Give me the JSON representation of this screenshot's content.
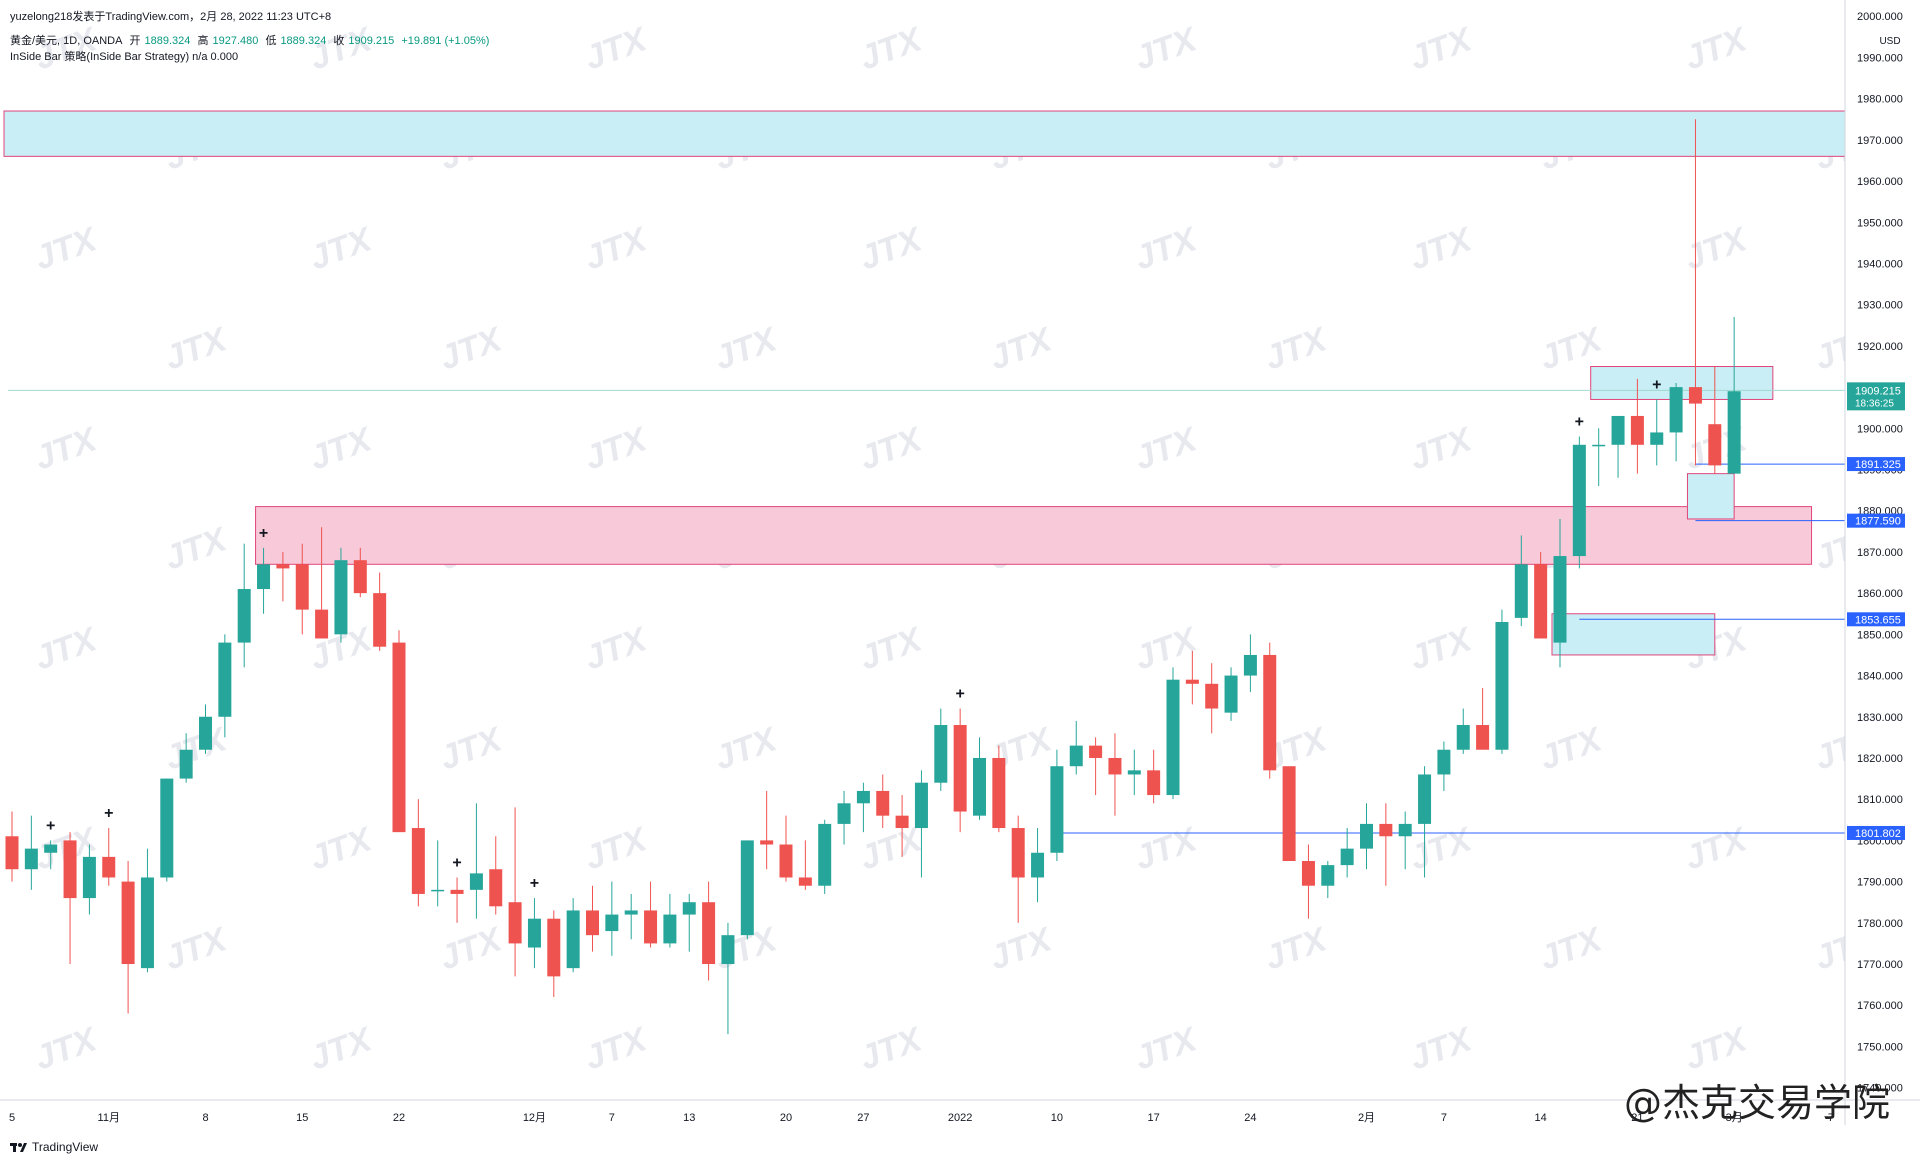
{
  "header": {
    "author_line": "yuzelong218发表于TradingView.com，2月 28, 2022 11:23 UTC+8",
    "symbol": "黄金/美元, 1D, OANDA",
    "open_label": "开",
    "open": "1889.324",
    "high_label": "高",
    "high": "1927.480",
    "low_label": "低",
    "low": "1889.324",
    "close_label": "收",
    "close": "1909.215",
    "change": "+19.891 (+1.05%)",
    "indicator": "InSide Bar 策略(InSide Bar Strategy)  n/a  0.000"
  },
  "footer": {
    "brand": "TradingView"
  },
  "watermark": {
    "text": "@杰克交易学院",
    "tile": "JTX"
  },
  "colors": {
    "up": "#26a69a",
    "down": "#ef5350",
    "zone_blue": "#c9eef5",
    "zone_pink": "#f8c9d8",
    "zone_border": "#e0457b",
    "level_line": "#2962ff",
    "price_tag": "#26a69a"
  },
  "chart_data": {
    "type": "candlestick",
    "title": "黄金/美元, 1D, OANDA",
    "currency": "USD",
    "yaxis_ticks": [
      "2000.000",
      "1990.000",
      "1980.000",
      "1970.000",
      "1960.000",
      "1950.000",
      "1940.000",
      "1930.000",
      "1920.000",
      "1910.000",
      "1900.000",
      "1890.000",
      "1880.000",
      "1870.000",
      "1860.000",
      "1850.000",
      "1840.000",
      "1830.000",
      "1820.000",
      "1810.000",
      "1800.000",
      "1790.000",
      "1780.000",
      "1770.000",
      "1760.000",
      "1750.000",
      "1740.000"
    ],
    "ylim": [
      1737,
      2002
    ],
    "xaxis_labels": [
      {
        "i": 0,
        "label": "5"
      },
      {
        "i": 5,
        "label": "11月"
      },
      {
        "i": 10,
        "label": "8"
      },
      {
        "i": 15,
        "label": "15"
      },
      {
        "i": 20,
        "label": "22"
      },
      {
        "i": 27,
        "label": "12月"
      },
      {
        "i": 31,
        "label": "7"
      },
      {
        "i": 35,
        "label": "13"
      },
      {
        "i": 40,
        "label": "20"
      },
      {
        "i": 44,
        "label": "27"
      },
      {
        "i": 49,
        "label": "2022"
      },
      {
        "i": 54,
        "label": "10"
      },
      {
        "i": 59,
        "label": "17"
      },
      {
        "i": 64,
        "label": "24"
      },
      {
        "i": 70,
        "label": "2月"
      },
      {
        "i": 74,
        "label": "7"
      },
      {
        "i": 79,
        "label": "14"
      },
      {
        "i": 84,
        "label": "21"
      },
      {
        "i": 89,
        "label": "3月"
      },
      {
        "i": 94,
        "label": "7"
      }
    ],
    "candles": [
      [
        1801,
        1807,
        1790,
        1793
      ],
      [
        1793,
        1806,
        1788,
        1798
      ],
      [
        1797,
        1800,
        1793,
        1799
      ],
      [
        1800,
        1802,
        1770,
        1786
      ],
      [
        1786,
        1799,
        1782,
        1796
      ],
      [
        1796,
        1803,
        1789,
        1791
      ],
      [
        1790,
        1795,
        1758,
        1770
      ],
      [
        1769,
        1798,
        1768,
        1791
      ],
      [
        1791,
        1815,
        1790,
        1815
      ],
      [
        1815,
        1826,
        1814,
        1822
      ],
      [
        1822,
        1833,
        1821,
        1830
      ],
      [
        1830,
        1850,
        1825,
        1848
      ],
      [
        1848,
        1872,
        1842,
        1861
      ],
      [
        1861,
        1871,
        1855,
        1867
      ],
      [
        1867,
        1870,
        1858,
        1866
      ],
      [
        1867,
        1872,
        1850,
        1856
      ],
      [
        1856,
        1876,
        1849,
        1849
      ],
      [
        1850,
        1871,
        1848,
        1868
      ],
      [
        1868,
        1871,
        1859,
        1860
      ],
      [
        1860,
        1865,
        1846,
        1847
      ],
      [
        1848,
        1851,
        1804,
        1802
      ],
      [
        1803,
        1810,
        1784,
        1787
      ],
      [
        1788,
        1800,
        1784,
        1788
      ],
      [
        1788,
        1791,
        1780,
        1787
      ],
      [
        1788,
        1809,
        1781,
        1792
      ],
      [
        1793,
        1801,
        1782,
        1784
      ],
      [
        1785,
        1808,
        1767,
        1775
      ],
      [
        1774,
        1786,
        1769,
        1781
      ],
      [
        1781,
        1783,
        1762,
        1767
      ],
      [
        1769,
        1786,
        1768,
        1783
      ],
      [
        1783,
        1789,
        1773,
        1777
      ],
      [
        1778,
        1790,
        1772,
        1782
      ],
      [
        1782,
        1787,
        1776,
        1783
      ],
      [
        1783,
        1790,
        1774,
        1775
      ],
      [
        1775,
        1787,
        1774,
        1782
      ],
      [
        1782,
        1787,
        1773,
        1785
      ],
      [
        1785,
        1790,
        1766,
        1770
      ],
      [
        1770,
        1780,
        1753,
        1777
      ],
      [
        1777,
        1800,
        1776,
        1800
      ],
      [
        1800,
        1812,
        1793,
        1799
      ],
      [
        1799,
        1806,
        1790,
        1791
      ],
      [
        1791,
        1800,
        1788,
        1789
      ],
      [
        1789,
        1805,
        1787,
        1804
      ],
      [
        1804,
        1812,
        1799,
        1809
      ],
      [
        1809,
        1814,
        1802,
        1812
      ],
      [
        1812,
        1816,
        1803,
        1806
      ],
      [
        1806,
        1811,
        1796,
        1803
      ],
      [
        1803,
        1817,
        1791,
        1814
      ],
      [
        1814,
        1832,
        1812,
        1828
      ],
      [
        1828,
        1832,
        1802,
        1807
      ],
      [
        1806,
        1825,
        1805,
        1820
      ],
      [
        1820,
        1823,
        1802,
        1803
      ],
      [
        1803,
        1806,
        1780,
        1791
      ],
      [
        1791,
        1803,
        1785,
        1797
      ],
      [
        1797,
        1822,
        1795,
        1818
      ],
      [
        1818,
        1829,
        1816,
        1823
      ],
      [
        1823,
        1825,
        1811,
        1820
      ],
      [
        1820,
        1826,
        1806,
        1816
      ],
      [
        1816,
        1822,
        1811,
        1817
      ],
      [
        1817,
        1822,
        1809,
        1811
      ],
      [
        1811,
        1842,
        1810,
        1839
      ],
      [
        1839,
        1846,
        1833,
        1838
      ],
      [
        1838,
        1843,
        1826,
        1832
      ],
      [
        1831,
        1842,
        1829,
        1840
      ],
      [
        1840,
        1850,
        1836,
        1845
      ],
      [
        1845,
        1848,
        1815,
        1817
      ],
      [
        1818,
        1817,
        1795,
        1795
      ],
      [
        1795,
        1799,
        1781,
        1789
      ],
      [
        1789,
        1795,
        1786,
        1794
      ],
      [
        1794,
        1803,
        1791,
        1798
      ],
      [
        1798,
        1809,
        1793,
        1804
      ],
      [
        1804,
        1809,
        1789,
        1801
      ],
      [
        1801,
        1807,
        1793,
        1804
      ],
      [
        1804,
        1818,
        1791,
        1816
      ],
      [
        1816,
        1824,
        1812,
        1822
      ],
      [
        1822,
        1832,
        1821,
        1828
      ],
      [
        1828,
        1837,
        1823,
        1822
      ],
      [
        1822,
        1856,
        1821,
        1853
      ],
      [
        1854,
        1874,
        1852,
        1867
      ],
      [
        1867,
        1870,
        1849,
        1849
      ],
      [
        1848,
        1878,
        1842,
        1869
      ],
      [
        1869,
        1898,
        1866,
        1896
      ],
      [
        1896,
        1900,
        1886,
        1896
      ],
      [
        1896,
        1903,
        1888,
        1903
      ],
      [
        1903,
        1912,
        1889,
        1896
      ],
      [
        1896,
        1907,
        1891,
        1899
      ],
      [
        1899,
        1911,
        1892,
        1910
      ],
      [
        1910,
        1975,
        1891,
        1906
      ],
      [
        1901,
        1915,
        1889,
        1891
      ],
      [
        1889,
        1927,
        1889,
        1909
      ]
    ],
    "inside_bar_markers": [
      2,
      5,
      13,
      23,
      27,
      49,
      81,
      85
    ],
    "zones": [
      {
        "type": "blue",
        "top": 1977,
        "bottom": 1966,
        "from": 0,
        "to": 96
      },
      {
        "type": "pink",
        "top": 1881,
        "bottom": 1867,
        "from": 13,
        "to": 93
      },
      {
        "type": "blue",
        "top": 1915,
        "bottom": 1907,
        "from": 82,
        "to": 91
      },
      {
        "type": "blue",
        "top": 1889,
        "bottom": 1878,
        "from": 87,
        "to": 89
      },
      {
        "type": "blue",
        "top": 1855,
        "bottom": 1845,
        "from": 80,
        "to": 88
      }
    ],
    "levels": [
      {
        "price": "1891.325",
        "from": 87
      },
      {
        "price": "1877.590",
        "from": 87
      },
      {
        "price": "1853.655",
        "from": 81
      },
      {
        "price": "1801.802",
        "from": 54
      }
    ],
    "current_price": {
      "price": "1909.215",
      "countdown": "18:36:25"
    }
  }
}
